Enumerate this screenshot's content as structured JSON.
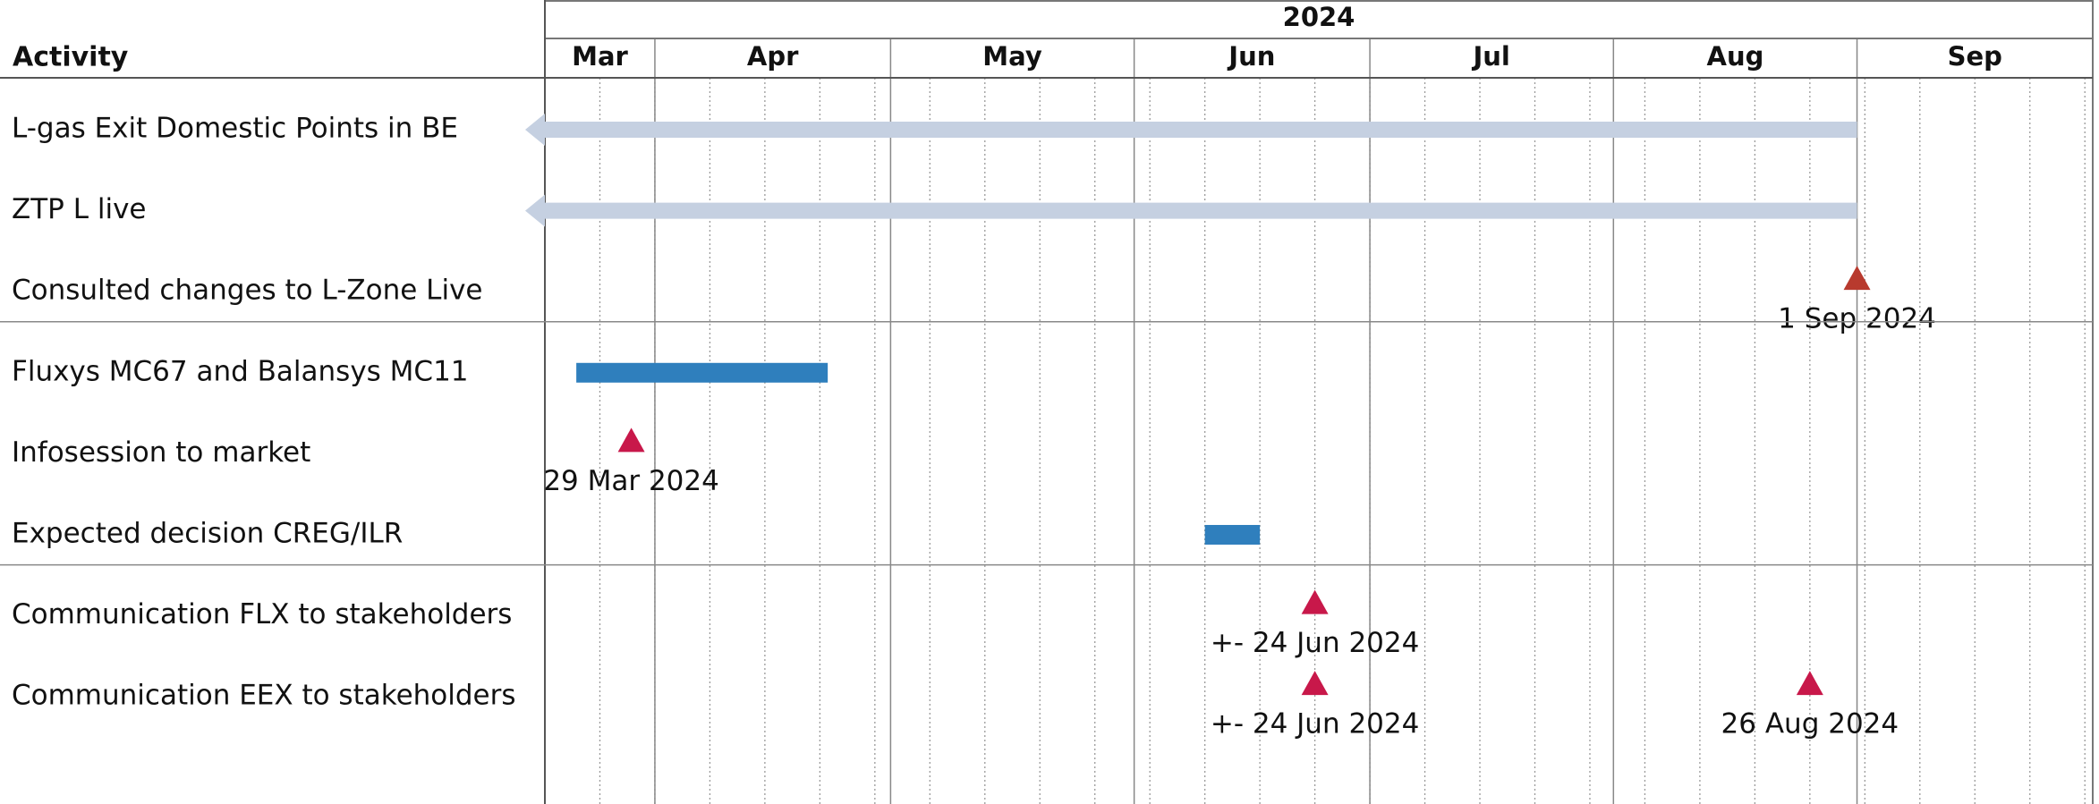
{
  "chart_data": {
    "type": "gantt",
    "header": "Activity",
    "year": 2024,
    "xlim": [
      "2024-03-18",
      "2024-10-01"
    ],
    "months": [
      "Mar",
      "Apr",
      "May",
      "Jun",
      "Jul",
      "Aug",
      "Sep"
    ],
    "groups": [
      {
        "tasks": [
          {
            "name": "L-gas Exit Domestic Points in BE",
            "bars": [
              {
                "start": null,
                "end": "2024-09-01",
                "color": "#c5d0e1"
              }
            ]
          },
          {
            "name": "ZTP L live",
            "bars": [
              {
                "start": null,
                "end": "2024-09-01",
                "color": "#c5d0e1"
              }
            ]
          },
          {
            "name": "Consulted changes to L-Zone Live",
            "milestones": [
              {
                "date": "2024-09-01",
                "label": "1 Sep 2024",
                "color": "#b83a2e"
              }
            ]
          }
        ]
      },
      {
        "tasks": [
          {
            "name": "Fluxys MC67 and Balansys MC11",
            "bars": [
              {
                "start": "2024-03-22",
                "end": "2024-04-23",
                "color": "#2f7fbd"
              }
            ]
          },
          {
            "name": "Infosession to market",
            "milestones": [
              {
                "date": "2024-03-29",
                "label": "29 Mar 2024",
                "color": "#c8184a"
              }
            ]
          },
          {
            "name": "Expected decision CREG/ILR",
            "bars": [
              {
                "start": "2024-06-10",
                "end": "2024-06-17",
                "color": "#2f7fbd"
              }
            ]
          }
        ]
      },
      {
        "tasks": [
          {
            "name": "Communication FLX to stakeholders",
            "milestones": [
              {
                "date": "2024-06-24",
                "label": "+- 24 Jun 2024",
                "color": "#c8184a"
              }
            ]
          },
          {
            "name": "Communication EEX to stakeholders",
            "milestones": [
              {
                "date": "2024-06-24",
                "label": "+- 24 Jun 2024",
                "color": "#c8184a"
              },
              {
                "date": "2024-08-26",
                "label": "26 Aug 2024",
                "color": "#c8184a"
              }
            ]
          }
        ]
      }
    ]
  }
}
